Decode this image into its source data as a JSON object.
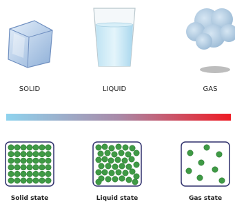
{
  "states": [
    {
      "label": "SOLID",
      "caption": "Solid state"
    },
    {
      "label": "LIQUID",
      "caption": "Liquid state"
    },
    {
      "label": "GAS",
      "caption": "Gas state"
    }
  ]
}
